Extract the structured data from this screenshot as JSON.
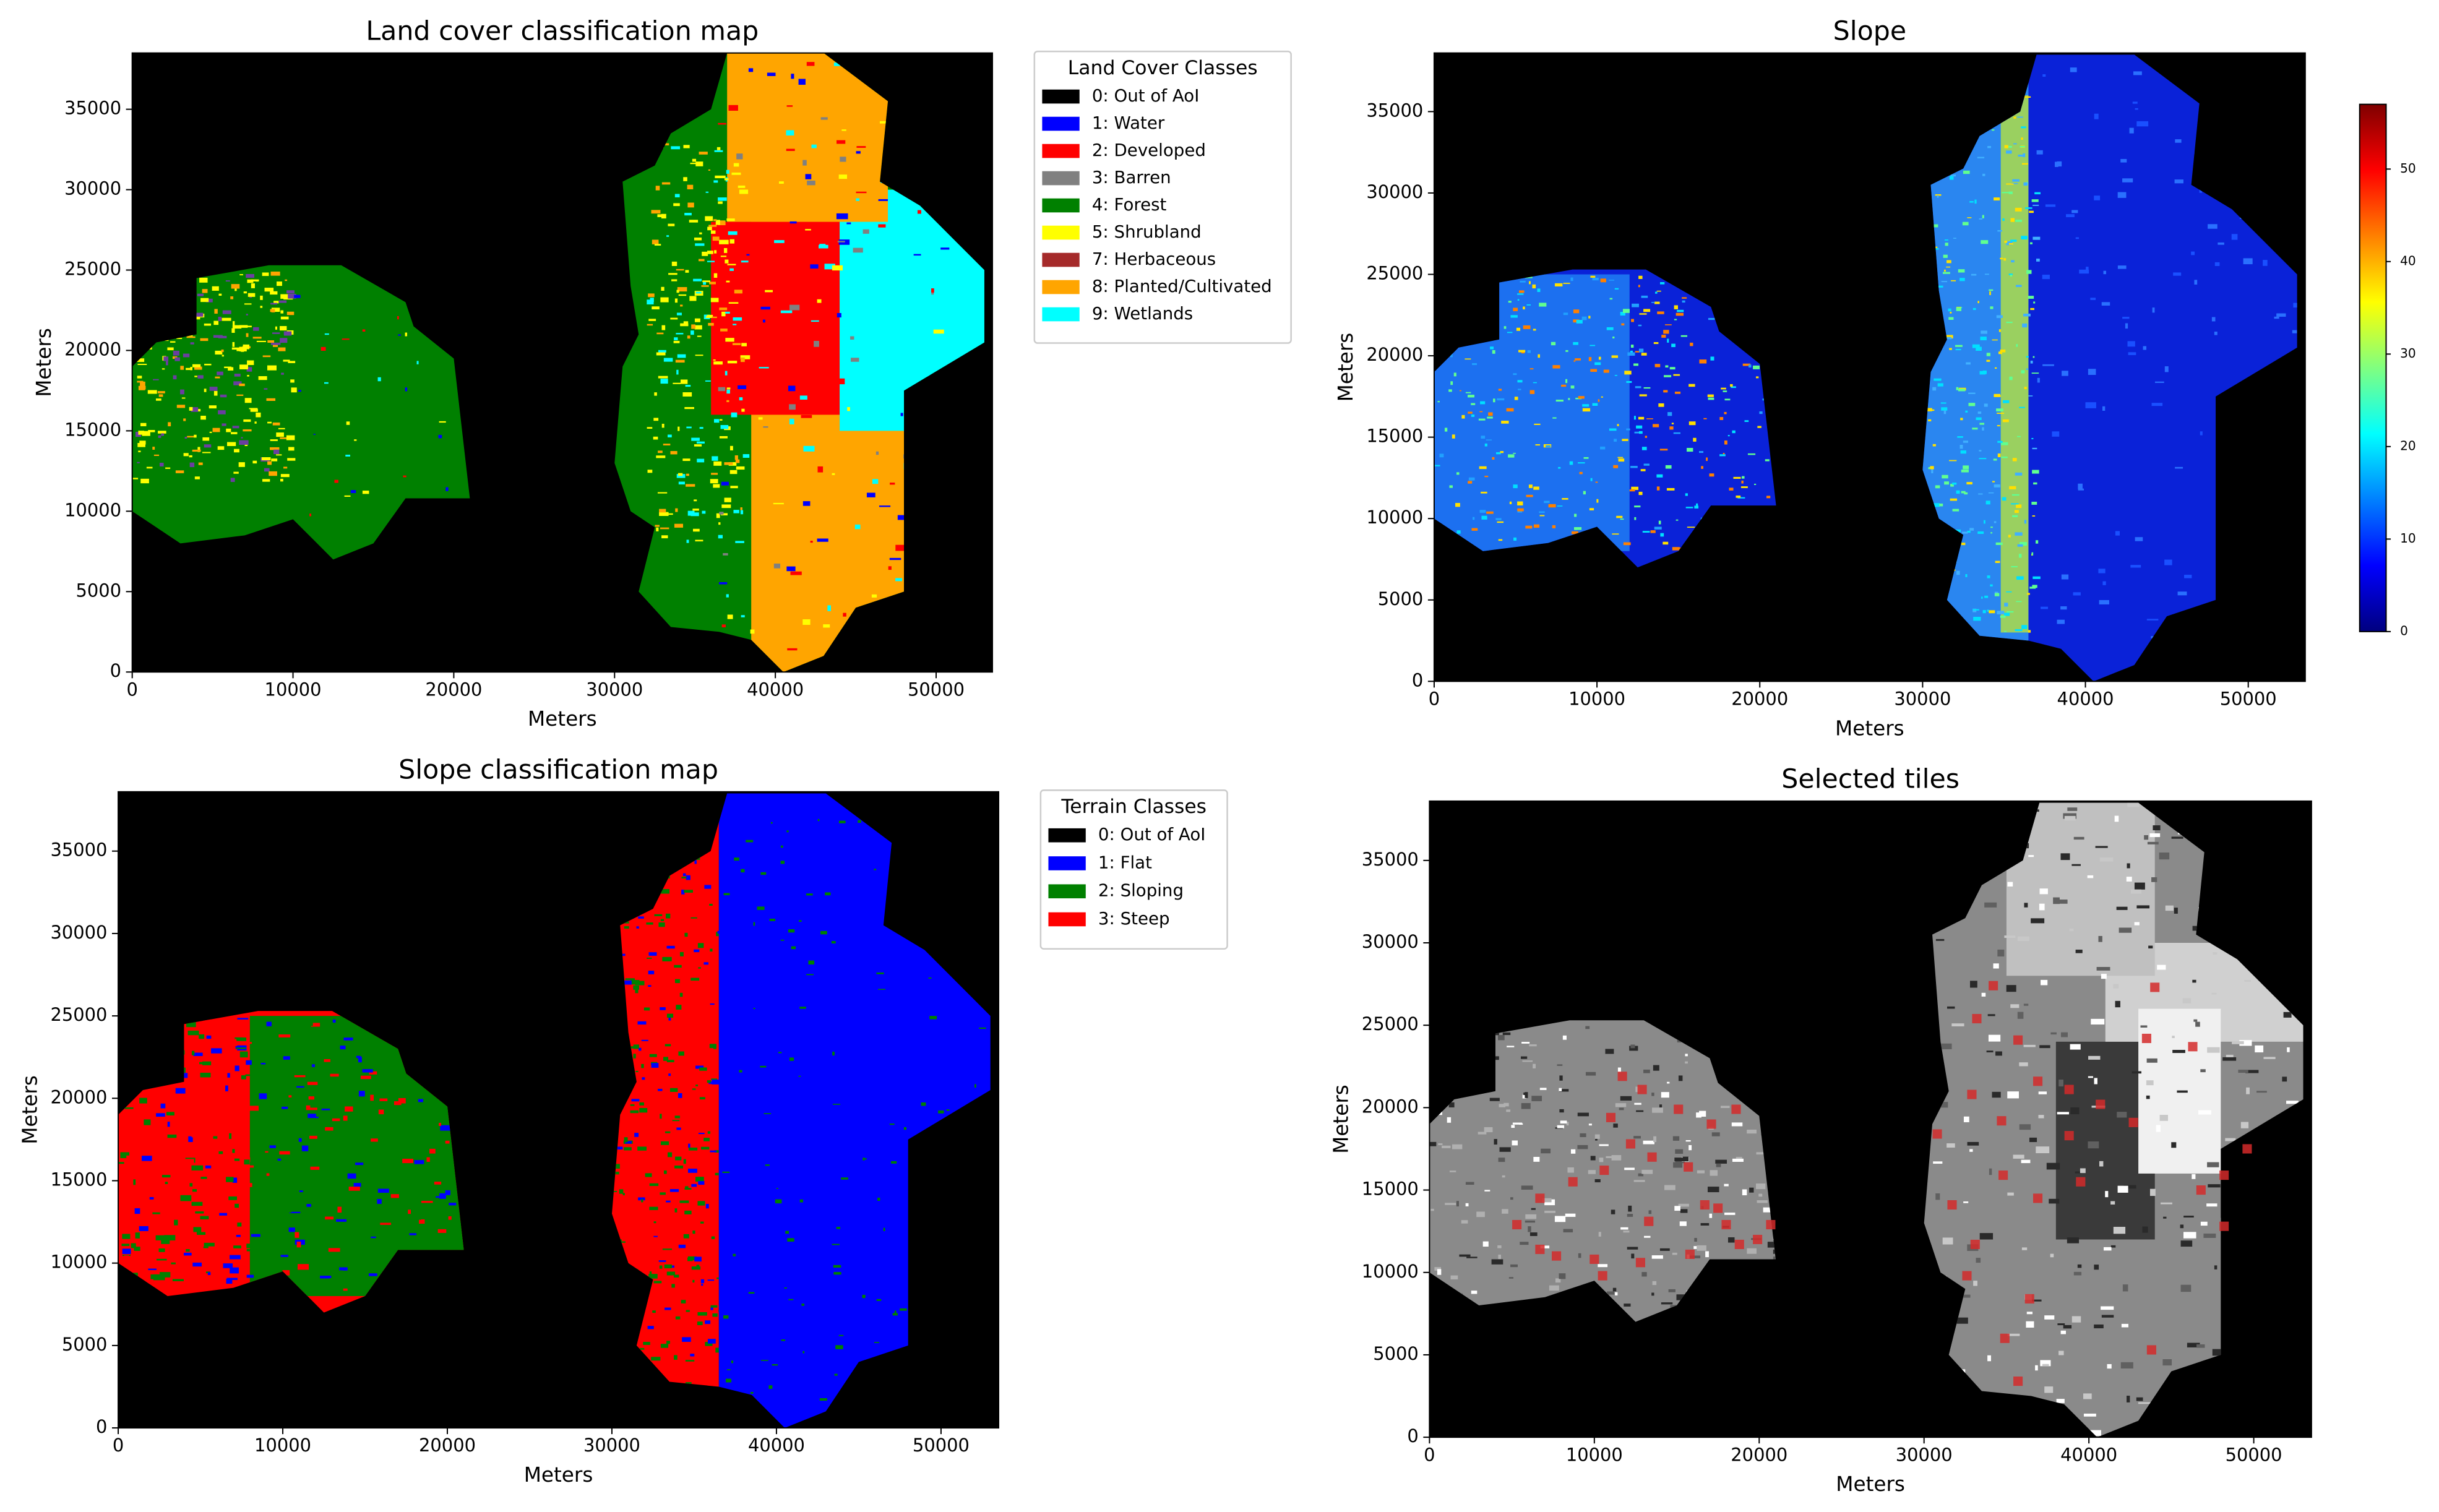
{
  "chart_data": [
    {
      "type": "map",
      "title": "Land cover classification map",
      "xlabel": "Meters",
      "ylabel": "Meters",
      "xlim": [
        0,
        53500
      ],
      "ylim": [
        0,
        38500
      ],
      "xticks": [
        0,
        10000,
        20000,
        30000,
        40000,
        50000
      ],
      "yticks": [
        0,
        5000,
        10000,
        15000,
        20000,
        25000,
        30000,
        35000
      ],
      "legend": {
        "title": "Land Cover Classes",
        "entries": [
          {
            "name": "0: Out of AoI",
            "color": "#000000"
          },
          {
            "name": "1: Water",
            "color": "#0000ff"
          },
          {
            "name": "2: Developed",
            "color": "#ff0000"
          },
          {
            "name": "3: Barren",
            "color": "#808080"
          },
          {
            "name": "4: Forest",
            "color": "#008000"
          },
          {
            "name": "5: Shrubland",
            "color": "#ffff00"
          },
          {
            "name": "7: Herbaceous",
            "color": "#a52a2a"
          },
          {
            "name": "8: Planted/Cultivated",
            "color": "#ffa500"
          },
          {
            "name": "9: Wetlands",
            "color": "#00ffff"
          }
        ]
      }
    },
    {
      "type": "map",
      "title": "Slope",
      "xlabel": "Meters",
      "ylabel": "Meters",
      "xlim": [
        0,
        53500
      ],
      "ylim": [
        0,
        38600
      ],
      "xticks": [
        0,
        10000,
        20000,
        30000,
        40000,
        50000
      ],
      "yticks": [
        0,
        5000,
        10000,
        15000,
        20000,
        25000,
        30000,
        35000
      ],
      "colorbar": {
        "colormap": "jet",
        "lim": [
          0,
          57
        ],
        "ticks": [
          0,
          10,
          20,
          30,
          40,
          50
        ]
      }
    },
    {
      "type": "map",
      "title": "Slope classification map",
      "xlabel": "Meters",
      "ylabel": "Meters",
      "xlim": [
        0,
        53500
      ],
      "ylim": [
        0,
        38600
      ],
      "xticks": [
        0,
        10000,
        20000,
        30000,
        40000,
        50000
      ],
      "yticks": [
        0,
        5000,
        10000,
        15000,
        20000,
        25000,
        30000,
        35000
      ],
      "legend": {
        "title": "Terrain Classes",
        "entries": [
          {
            "name": "0: Out of AoI",
            "color": "#000000"
          },
          {
            "name": "1: Flat",
            "color": "#0000ff"
          },
          {
            "name": "2: Sloping",
            "color": "#008000"
          },
          {
            "name": "3: Steep",
            "color": "#ff0000"
          }
        ]
      }
    },
    {
      "type": "map",
      "title": "Selected tiles",
      "xlabel": "Meters",
      "ylabel": "Meters",
      "xlim": [
        0,
        53500
      ],
      "ylim": [
        0,
        38600
      ],
      "xticks": [
        0,
        10000,
        20000,
        30000,
        40000,
        50000
      ],
      "yticks": [
        0,
        5000,
        10000,
        15000,
        20000,
        25000,
        30000,
        35000
      ],
      "points": {
        "color": "#d42a2a",
        "x": [
          11700,
          12900,
          15100,
          17100,
          18600,
          11000,
          12200,
          13500,
          10600,
          8700,
          6700,
          5300,
          6700,
          7700,
          10000,
          10500,
          13300,
          15700,
          16700,
          17500,
          18000,
          18800,
          19900,
          20700,
          12800,
          15800,
          34200,
          33200,
          35700,
          32900,
          30800,
          34700,
          36900,
          38800,
          40700,
          42700,
          43500,
          46300,
          44000,
          38800,
          39500,
          31700,
          34800,
          36900,
          33100,
          32600,
          36400,
          34900,
          35700,
          43800,
          46800,
          48200,
          48200,
          49600
        ],
        "y": [
          21900,
          21100,
          19900,
          19000,
          19900,
          19400,
          17800,
          17000,
          16200,
          15500,
          14500,
          12900,
          11400,
          11000,
          10800,
          9800,
          13100,
          16400,
          14100,
          13900,
          12900,
          11700,
          12000,
          12900,
          10600,
          11100,
          27400,
          25400,
          24100,
          20800,
          18400,
          19200,
          21600,
          21100,
          20200,
          19100,
          24200,
          23700,
          27300,
          18300,
          15500,
          14100,
          15900,
          14500,
          11700,
          9800,
          8400,
          6000,
          3400,
          5300,
          15000,
          15900,
          12800,
          17500
        ]
      }
    }
  ]
}
